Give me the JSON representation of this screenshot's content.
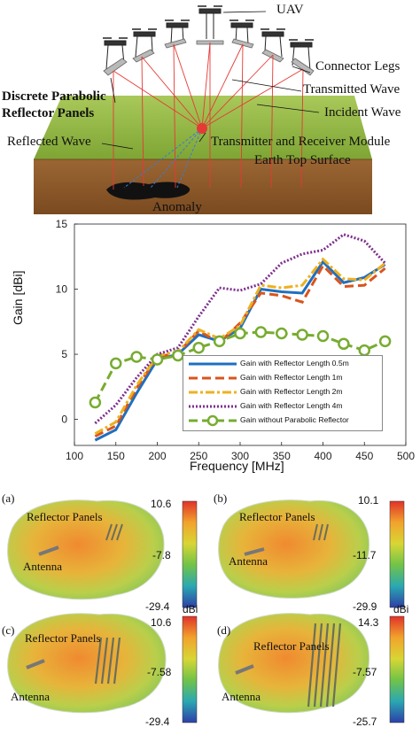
{
  "top_figure": {
    "labels": {
      "uav": "UAV",
      "connector_legs": "Connector Legs",
      "transmitted_wave": "Transmitted Wave",
      "incident_wave": "Incident Wave",
      "reflector_panels_line1": "Discrete Parabolic",
      "reflector_panels_line2": "Reflector Panels",
      "reflected_wave": "Reflected Wave",
      "module": "Transmitter and Receiver Module",
      "earth_surface": "Earth Top Surface",
      "anomaly": "Anomaly"
    },
    "colors": {
      "grass": "#8fb63e",
      "soil": "#8a5a2b",
      "rays": "#e53935",
      "module": "#e53935",
      "reflected": "#3a7bd5"
    }
  },
  "chart_data": {
    "type": "line",
    "xlabel": "Frequency [MHz]",
    "ylabel": "Gain [dBi]",
    "xlim": [
      100,
      500
    ],
    "ylim": [
      -2,
      15
    ],
    "xticks": [
      100,
      150,
      200,
      250,
      300,
      350,
      400,
      450,
      500
    ],
    "yticks": [
      0,
      5,
      10,
      15
    ],
    "grid": false,
    "legend_position": "bottom-right",
    "x": [
      125,
      150,
      175,
      200,
      225,
      250,
      275,
      300,
      325,
      350,
      375,
      400,
      425,
      450,
      475
    ],
    "series": [
      {
        "name": "Gain with Reflector Length 0.5m",
        "color": "#1f6fbf",
        "style": "solid",
        "values": [
          -1.6,
          -0.8,
          2.0,
          4.6,
          5.0,
          6.5,
          6.0,
          7.0,
          10.0,
          9.8,
          9.7,
          12.1,
          10.5,
          10.9,
          11.9
        ]
      },
      {
        "name": "Gain with Reflector Length 1m",
        "color": "#d9541e",
        "style": "dashed",
        "values": [
          -1.3,
          -0.5,
          2.4,
          4.8,
          5.1,
          6.8,
          5.9,
          7.4,
          9.7,
          9.5,
          9.0,
          11.8,
          10.2,
          10.3,
          11.6
        ]
      },
      {
        "name": "Gain with Reflector Length 2m",
        "color": "#edb120",
        "style": "dashdot",
        "values": [
          -1.1,
          -0.2,
          2.6,
          4.9,
          5.2,
          6.9,
          6.2,
          7.2,
          10.3,
          10.1,
          10.3,
          12.3,
          10.8,
          10.7,
          12.0
        ]
      },
      {
        "name": "Gain with Reflector Length 4m",
        "color": "#7e2f8e",
        "style": "dotted",
        "values": [
          -0.3,
          1.1,
          3.2,
          5.0,
          5.5,
          7.9,
          10.1,
          9.9,
          10.4,
          12.0,
          12.7,
          13.0,
          14.2,
          13.7,
          12.0
        ]
      },
      {
        "name": "Gain without Parabolic Reflector",
        "color": "#77ac30",
        "style": "dash-circle",
        "values": [
          1.3,
          4.3,
          4.8,
          4.6,
          4.9,
          5.5,
          6.0,
          6.6,
          6.7,
          6.6,
          6.5,
          6.4,
          5.8,
          5.3,
          6.0
        ]
      }
    ]
  },
  "radiation_patterns": [
    {
      "tag": "(a)",
      "cb_max": "10.6",
      "cb_mid": "-7.8",
      "cb_min": "-29.4",
      "unit": "",
      "reflector_label": "Reflector Panels",
      "antenna_label": "Antenna"
    },
    {
      "tag": "(b)",
      "cb_max": "10.1",
      "cb_mid": "-11.7",
      "cb_min": "-29.9",
      "unit": "",
      "reflector_label": "Reflector Panels",
      "antenna_label": "Antenna"
    },
    {
      "tag": "(c)",
      "cb_max": "10.6",
      "cb_mid": "-7.58",
      "cb_min": "-29.4",
      "unit": "dBi",
      "reflector_label": "Reflector Panels",
      "antenna_label": "Antenna"
    },
    {
      "tag": "(d)",
      "cb_max": "14.3",
      "cb_mid": "-7.57",
      "cb_min": "-25.7",
      "unit": "dBi",
      "reflector_label": "Reflector Panels",
      "antenna_label": "Antenna"
    }
  ]
}
